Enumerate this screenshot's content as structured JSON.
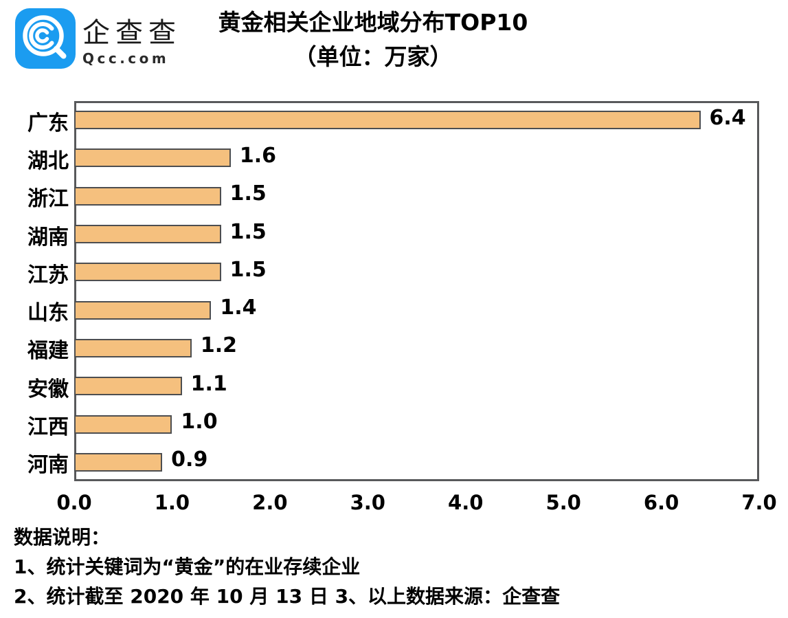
{
  "brand": {
    "logo_icon": "qcc-magnifier-icon",
    "logo_color": "#1b9cf0",
    "name_cn": "企查查",
    "name_en": "Qcc.com"
  },
  "title": {
    "line1": "黄金相关企业地域分布TOP10",
    "line2": "（单位：万家）"
  },
  "chart_data": {
    "type": "bar",
    "orientation": "horizontal",
    "title": "黄金相关企业地域分布TOP10",
    "subtitle": "（单位：万家）",
    "categories": [
      "广东",
      "湖北",
      "浙江",
      "湖南",
      "江苏",
      "山东",
      "福建",
      "安徽",
      "江西",
      "河南"
    ],
    "values": [
      6.4,
      1.6,
      1.5,
      1.5,
      1.5,
      1.4,
      1.2,
      1.1,
      1.0,
      0.9
    ],
    "value_labels": [
      "6.4",
      "1.6",
      "1.5",
      "1.5",
      "1.5",
      "1.4",
      "1.2",
      "1.1",
      "1.0",
      "0.9"
    ],
    "xlim": [
      0.0,
      7.0
    ],
    "x_ticks": [
      "0.0",
      "1.0",
      "2.0",
      "3.0",
      "4.0",
      "5.0",
      "6.0",
      "7.0"
    ],
    "xlabel": "",
    "ylabel": "",
    "grid": false,
    "legend_position": "none",
    "bar_color": "#f5c07e",
    "bar_border_color": "#4d4e50",
    "plot_border_color": "#58595b"
  },
  "notes": {
    "heading": "数据说明：",
    "line1": "1、统计关键词为“黄金”的在业存续企业",
    "line2": "2、统计截至 2020 年 10 月 13 日  3、以上数据来源：企查查"
  }
}
